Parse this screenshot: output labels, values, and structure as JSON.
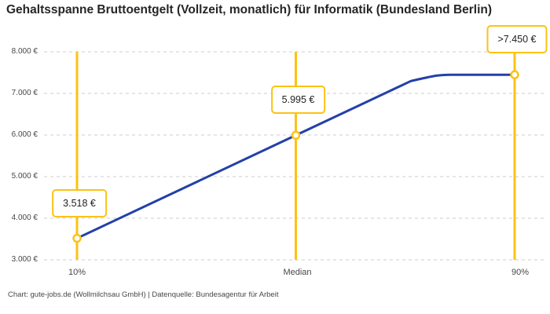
{
  "title": "Gehaltsspanne Bruttoentgelt (Vollzeit, monatlich) für Informatik (Bundesland Berlin)",
  "footer": "Chart: gute-jobs.de (Wollmilchsau GmbH) | Datenquelle: Bundesagentur für Arbeit",
  "colors": {
    "accent_yellow": "#FCC216",
    "line_blue": "#2340A9",
    "grid": "#CCCCCC",
    "title_text": "#262626",
    "axis_text": "#474747",
    "footer_text": "#474747",
    "value_text": "#222222",
    "point_fill": "#FFFFFF"
  },
  "chart_data": {
    "type": "line",
    "title": "Gehaltsspanne Bruttoentgelt (Vollzeit, monatlich) für Informatik (Bundesland Berlin)",
    "categories": [
      "10%",
      "Median",
      "90%"
    ],
    "values": [
      3518,
      5995,
      7450
    ],
    "point_labels": [
      "3.518 €",
      "5.995 €",
      ">7.450 €"
    ],
    "censored_last": true,
    "xlabel": "",
    "ylabel": "",
    "ylim": [
      3000,
      8000
    ],
    "y_tick_values": [
      8000,
      7000,
      6000,
      5000,
      4000,
      3000
    ],
    "y_tick_labels": [
      "8.000 €",
      "7.000 €",
      "6.000 €",
      "5.000 €",
      "4.000 €",
      "3.000 €"
    ],
    "grid": "horizontal-dashed",
    "legend": "none",
    "marker_lines": "vertical at each category",
    "source": "Bundesagentur für Arbeit",
    "chart_credit": "gute-jobs.de (Wollmilchsau GmbH)"
  }
}
